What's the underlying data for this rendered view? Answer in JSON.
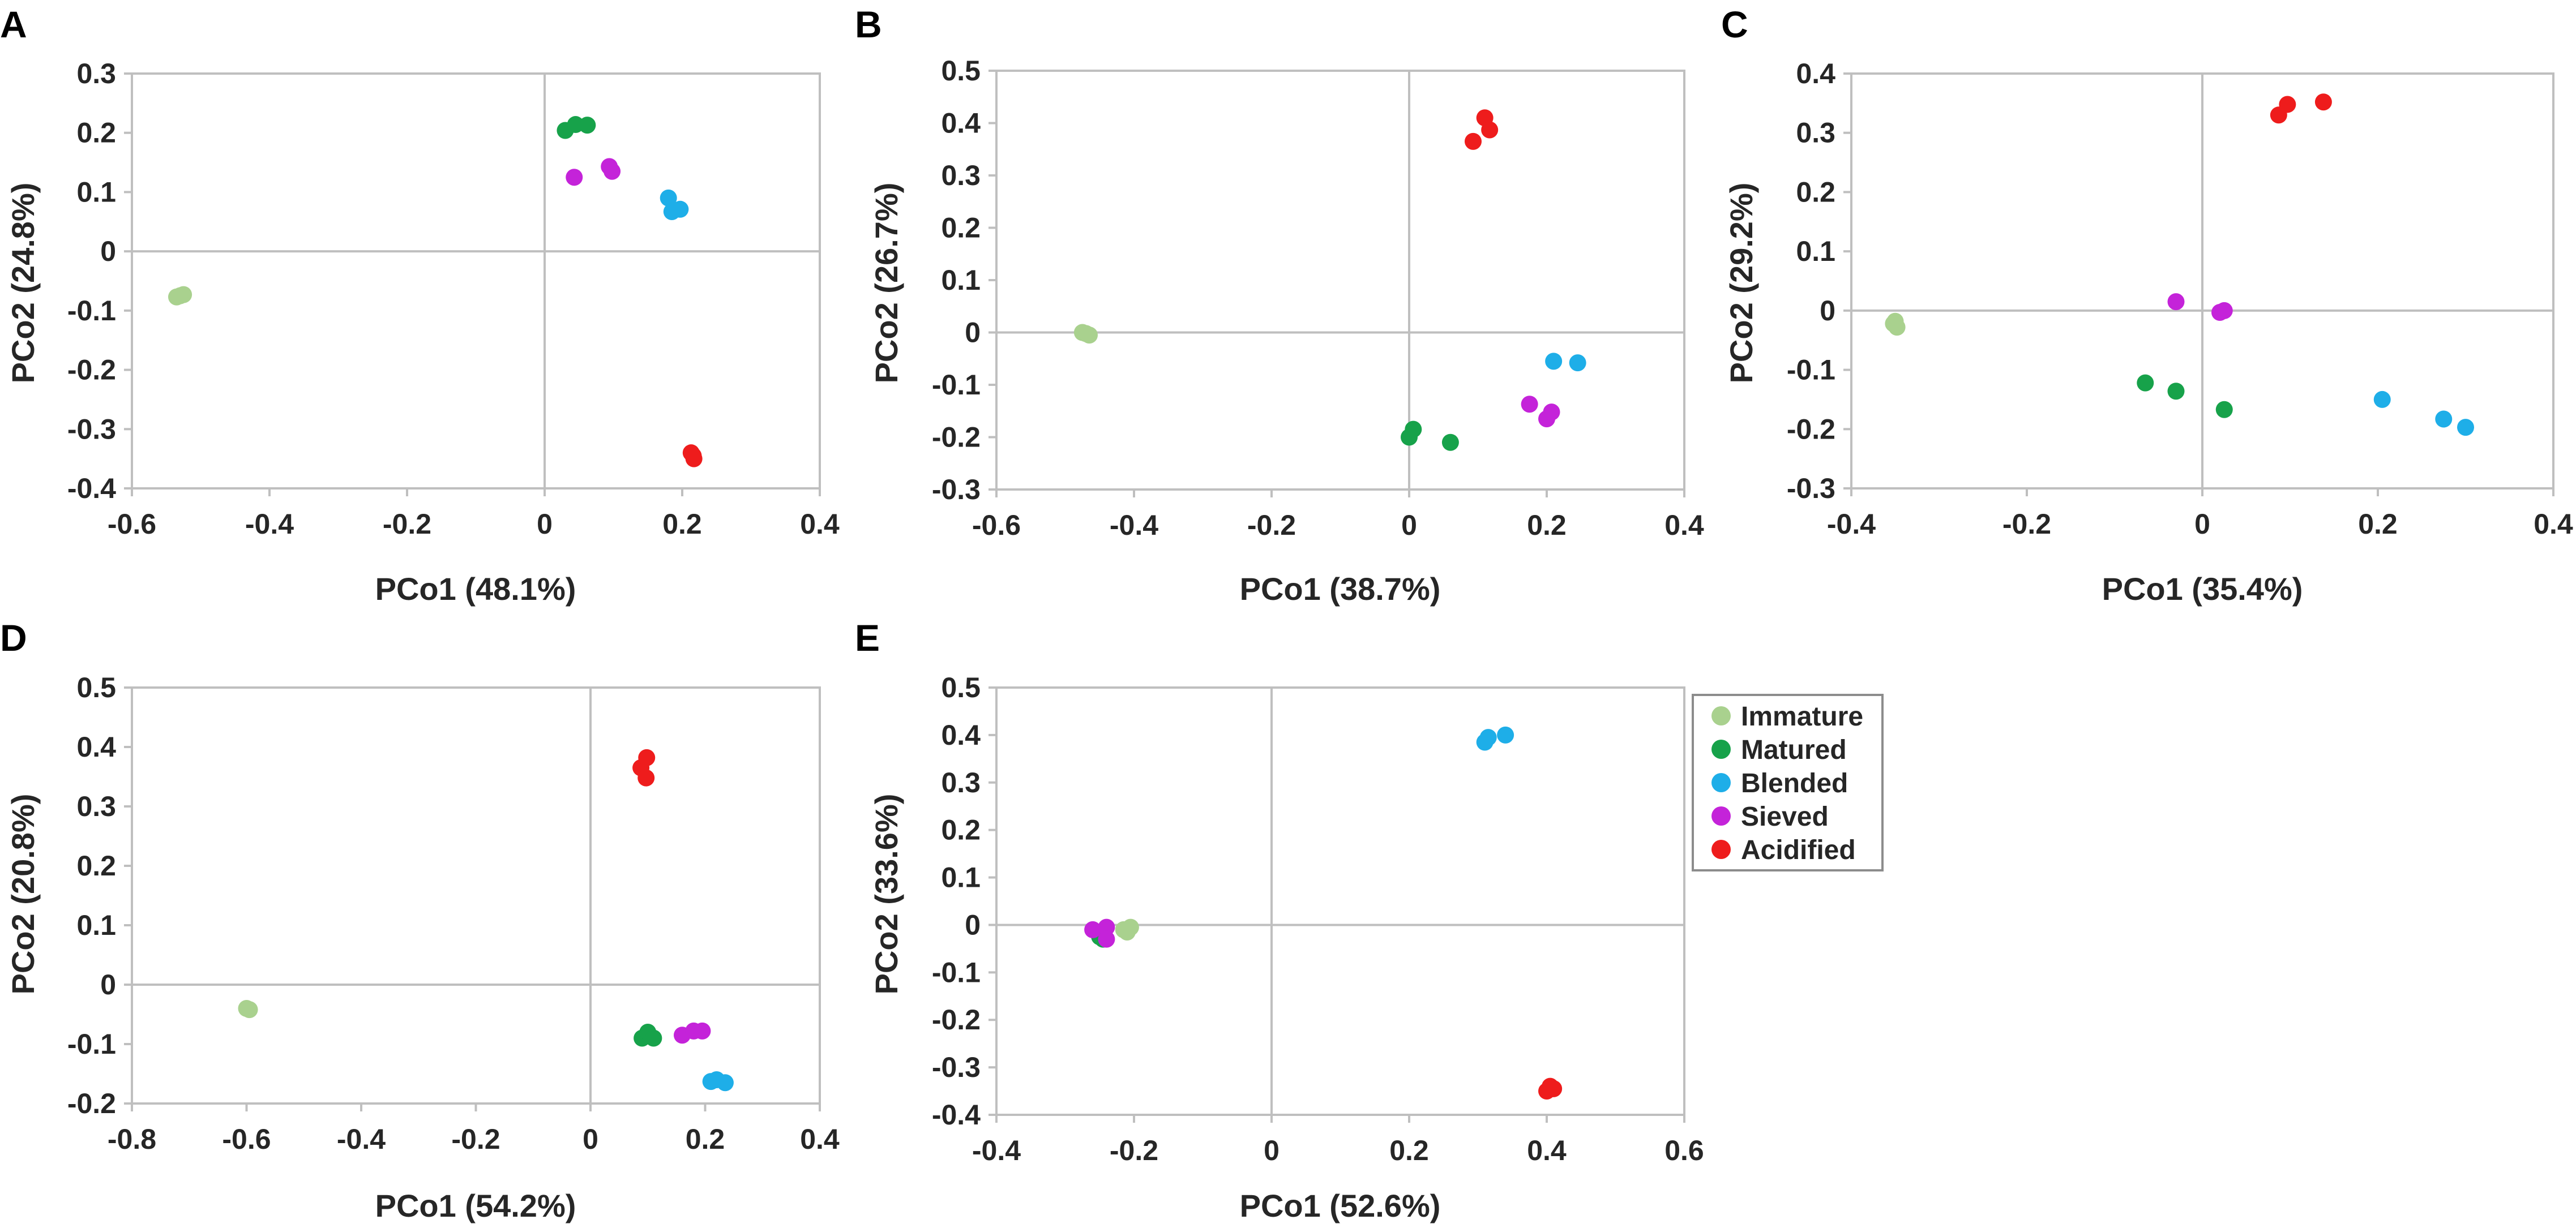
{
  "colors": {
    "Immature": "#a9d18e",
    "Matured": "#17a24a",
    "Blended": "#1eaee8",
    "Sieved": "#c423d9",
    "Acidified": "#ee1c1c"
  },
  "legend": {
    "entries": [
      "Immature",
      "Matured",
      "Blended",
      "Sieved",
      "Acidified"
    ]
  },
  "chart_data": [
    {
      "panel": "A",
      "type": "scatter",
      "xlabel": "PCo1 (48.1%)",
      "ylabel": "PCo2 (24.8%)",
      "xlim": [
        -0.6,
        0.4
      ],
      "ylim": [
        -0.4,
        0.3
      ],
      "xticks": [
        -0.6,
        -0.4,
        -0.2,
        0,
        0.2,
        0.4
      ],
      "yticks": [
        -0.4,
        -0.3,
        -0.2,
        -0.1,
        0,
        0.1,
        0.2,
        0.3
      ],
      "xtick_labels": [
        "-0.6",
        "-0.4",
        "-0.2",
        "0",
        "0.2",
        "0.4"
      ],
      "ytick_labels": [
        "-0.4",
        "-0.3",
        "-0.2",
        "-0.1",
        "0",
        "0.1",
        "0.2",
        "0.3"
      ],
      "series": [
        {
          "name": "Immature",
          "points": [
            [
              -0.535,
              -0.077
            ],
            [
              -0.525,
              -0.073
            ],
            [
              -0.53,
              -0.075
            ]
          ]
        },
        {
          "name": "Matured",
          "points": [
            [
              0.03,
              0.204
            ],
            [
              0.045,
              0.214
            ],
            [
              0.062,
              0.213
            ]
          ]
        },
        {
          "name": "Blended",
          "points": [
            [
              0.18,
              0.09
            ],
            [
              0.185,
              0.067
            ],
            [
              0.197,
              0.071
            ]
          ]
        },
        {
          "name": "Sieved",
          "points": [
            [
              0.043,
              0.125
            ],
            [
              0.094,
              0.143
            ],
            [
              0.098,
              0.135
            ]
          ]
        },
        {
          "name": "Acidified",
          "points": [
            [
              0.213,
              -0.34
            ],
            [
              0.217,
              -0.35
            ],
            [
              0.216,
              -0.345
            ]
          ]
        }
      ]
    },
    {
      "panel": "B",
      "type": "scatter",
      "xlabel": "PCo1 (38.7%)",
      "ylabel": "PCo2 (26.7%)",
      "xlim": [
        -0.6,
        0.4
      ],
      "ylim": [
        -0.3,
        0.5
      ],
      "xticks": [
        -0.6,
        -0.4,
        -0.2,
        0,
        0.2,
        0.4
      ],
      "yticks": [
        -0.3,
        -0.2,
        -0.1,
        0,
        0.1,
        0.2,
        0.3,
        0.4,
        0.5
      ],
      "xtick_labels": [
        "-0.6",
        "-0.4",
        "-0.2",
        "0",
        "0.2",
        "0.4"
      ],
      "ytick_labels": [
        "-0.3",
        "-0.2",
        "-0.1",
        "0",
        "0.1",
        "0.2",
        "0.3",
        "0.4",
        "0.5"
      ],
      "series": [
        {
          "name": "Immature",
          "points": [
            [
              -0.475,
              0.0
            ],
            [
              -0.465,
              -0.005
            ],
            [
              -0.47,
              -0.002
            ]
          ]
        },
        {
          "name": "Matured",
          "points": [
            [
              0.0,
              -0.2
            ],
            [
              0.006,
              -0.185
            ],
            [
              0.06,
              -0.21
            ]
          ]
        },
        {
          "name": "Blended",
          "points": [
            [
              0.21,
              -0.055
            ],
            [
              0.245,
              -0.058
            ]
          ]
        },
        {
          "name": "Sieved",
          "points": [
            [
              0.175,
              -0.137
            ],
            [
              0.2,
              -0.165
            ],
            [
              0.207,
              -0.152
            ]
          ]
        },
        {
          "name": "Acidified",
          "points": [
            [
              0.093,
              0.365
            ],
            [
              0.11,
              0.41
            ],
            [
              0.117,
              0.387
            ]
          ]
        }
      ]
    },
    {
      "panel": "C",
      "type": "scatter",
      "xlabel": "PCo1 (35.4%)",
      "ylabel": "PCo2 (29.2%)",
      "xlim": [
        -0.4,
        0.4
      ],
      "ylim": [
        -0.3,
        0.4
      ],
      "xticks": [
        -0.4,
        -0.2,
        0,
        0.2,
        0.4
      ],
      "yticks": [
        -0.3,
        -0.2,
        -0.1,
        0,
        0.1,
        0.2,
        0.3,
        0.4
      ],
      "xtick_labels": [
        "-0.4",
        "-0.2",
        "0",
        "0.2",
        "0.4"
      ],
      "ytick_labels": [
        "-0.3",
        "-0.2",
        "-0.1",
        "0",
        "0.1",
        "0.2",
        "0.3",
        "0.4"
      ],
      "series": [
        {
          "name": "Immature",
          "points": [
            [
              -0.35,
              -0.018
            ],
            [
              -0.348,
              -0.028
            ],
            [
              -0.352,
              -0.022
            ]
          ]
        },
        {
          "name": "Matured",
          "points": [
            [
              -0.065,
              -0.122
            ],
            [
              -0.03,
              -0.136
            ],
            [
              0.025,
              -0.167
            ]
          ]
        },
        {
          "name": "Blended",
          "points": [
            [
              0.205,
              -0.15
            ],
            [
              0.275,
              -0.183
            ],
            [
              0.3,
              -0.197
            ]
          ]
        },
        {
          "name": "Sieved",
          "points": [
            [
              -0.03,
              0.015
            ],
            [
              0.02,
              -0.003
            ],
            [
              0.025,
              0.0
            ]
          ]
        },
        {
          "name": "Acidified",
          "points": [
            [
              0.087,
              0.33
            ],
            [
              0.097,
              0.348
            ],
            [
              0.138,
              0.352
            ]
          ]
        }
      ]
    },
    {
      "panel": "D",
      "type": "scatter",
      "xlabel": "PCo1 (54.2%)",
      "ylabel": "PCo2 (20.8%)",
      "xlim": [
        -0.8,
        0.4
      ],
      "ylim": [
        -0.2,
        0.5
      ],
      "xticks": [
        -0.8,
        -0.6,
        -0.4,
        -0.2,
        0,
        0.2,
        0.4
      ],
      "yticks": [
        -0.2,
        -0.1,
        0,
        0.1,
        0.2,
        0.3,
        0.4,
        0.5
      ],
      "xtick_labels": [
        "-0.8",
        "-0.6",
        "-0.4",
        "-0.2",
        "0",
        "0.2",
        "0.4"
      ],
      "ytick_labels": [
        "-0.2",
        "-0.1",
        "0",
        "0.1",
        "0.2",
        "0.3",
        "0.4",
        "0.5"
      ],
      "series": [
        {
          "name": "Immature",
          "points": [
            [
              -0.6,
              -0.04
            ],
            [
              -0.595,
              -0.042
            ]
          ]
        },
        {
          "name": "Matured",
          "points": [
            [
              0.09,
              -0.09
            ],
            [
              0.1,
              -0.08
            ],
            [
              0.11,
              -0.09
            ]
          ]
        },
        {
          "name": "Blended",
          "points": [
            [
              0.21,
              -0.163
            ],
            [
              0.22,
              -0.16
            ],
            [
              0.235,
              -0.165
            ]
          ]
        },
        {
          "name": "Sieved",
          "points": [
            [
              0.16,
              -0.085
            ],
            [
              0.18,
              -0.078
            ],
            [
              0.195,
              -0.078
            ]
          ]
        },
        {
          "name": "Acidified",
          "points": [
            [
              0.088,
              0.365
            ],
            [
              0.098,
              0.382
            ],
            [
              0.097,
              0.348
            ]
          ]
        }
      ]
    },
    {
      "panel": "E",
      "type": "scatter",
      "xlabel": "PCo1 (52.6%)",
      "ylabel": "PCo2 (33.6%)",
      "xlim": [
        -0.4,
        0.6
      ],
      "ylim": [
        -0.4,
        0.5
      ],
      "xticks": [
        -0.4,
        -0.2,
        0,
        0.2,
        0.4,
        0.6
      ],
      "yticks": [
        -0.4,
        -0.3,
        -0.2,
        -0.1,
        0,
        0.1,
        0.2,
        0.3,
        0.4,
        0.5
      ],
      "xtick_labels": [
        "-0.4",
        "-0.2",
        "0",
        "0.2",
        "0.4",
        "0.6"
      ],
      "ytick_labels": [
        "-0.4",
        "-0.3",
        "-0.2",
        "-0.1",
        "0",
        "0.1",
        "0.2",
        "0.3",
        "0.4",
        "0.5"
      ],
      "series": [
        {
          "name": "Immature",
          "points": [
            [
              -0.215,
              -0.01
            ],
            [
              -0.205,
              -0.005
            ],
            [
              -0.21,
              -0.015
            ]
          ]
        },
        {
          "name": "Matured",
          "points": [
            [
              -0.25,
              -0.025
            ],
            [
              -0.245,
              -0.03
            ]
          ]
        },
        {
          "name": "Blended",
          "points": [
            [
              0.31,
              0.385
            ],
            [
              0.315,
              0.395
            ],
            [
              0.34,
              0.4
            ]
          ]
        },
        {
          "name": "Sieved",
          "points": [
            [
              -0.26,
              -0.01
            ],
            [
              -0.24,
              -0.005
            ],
            [
              -0.24,
              -0.03
            ]
          ]
        },
        {
          "name": "Acidified",
          "points": [
            [
              0.4,
              -0.35
            ],
            [
              0.405,
              -0.34
            ],
            [
              0.41,
              -0.345
            ]
          ]
        }
      ]
    }
  ]
}
